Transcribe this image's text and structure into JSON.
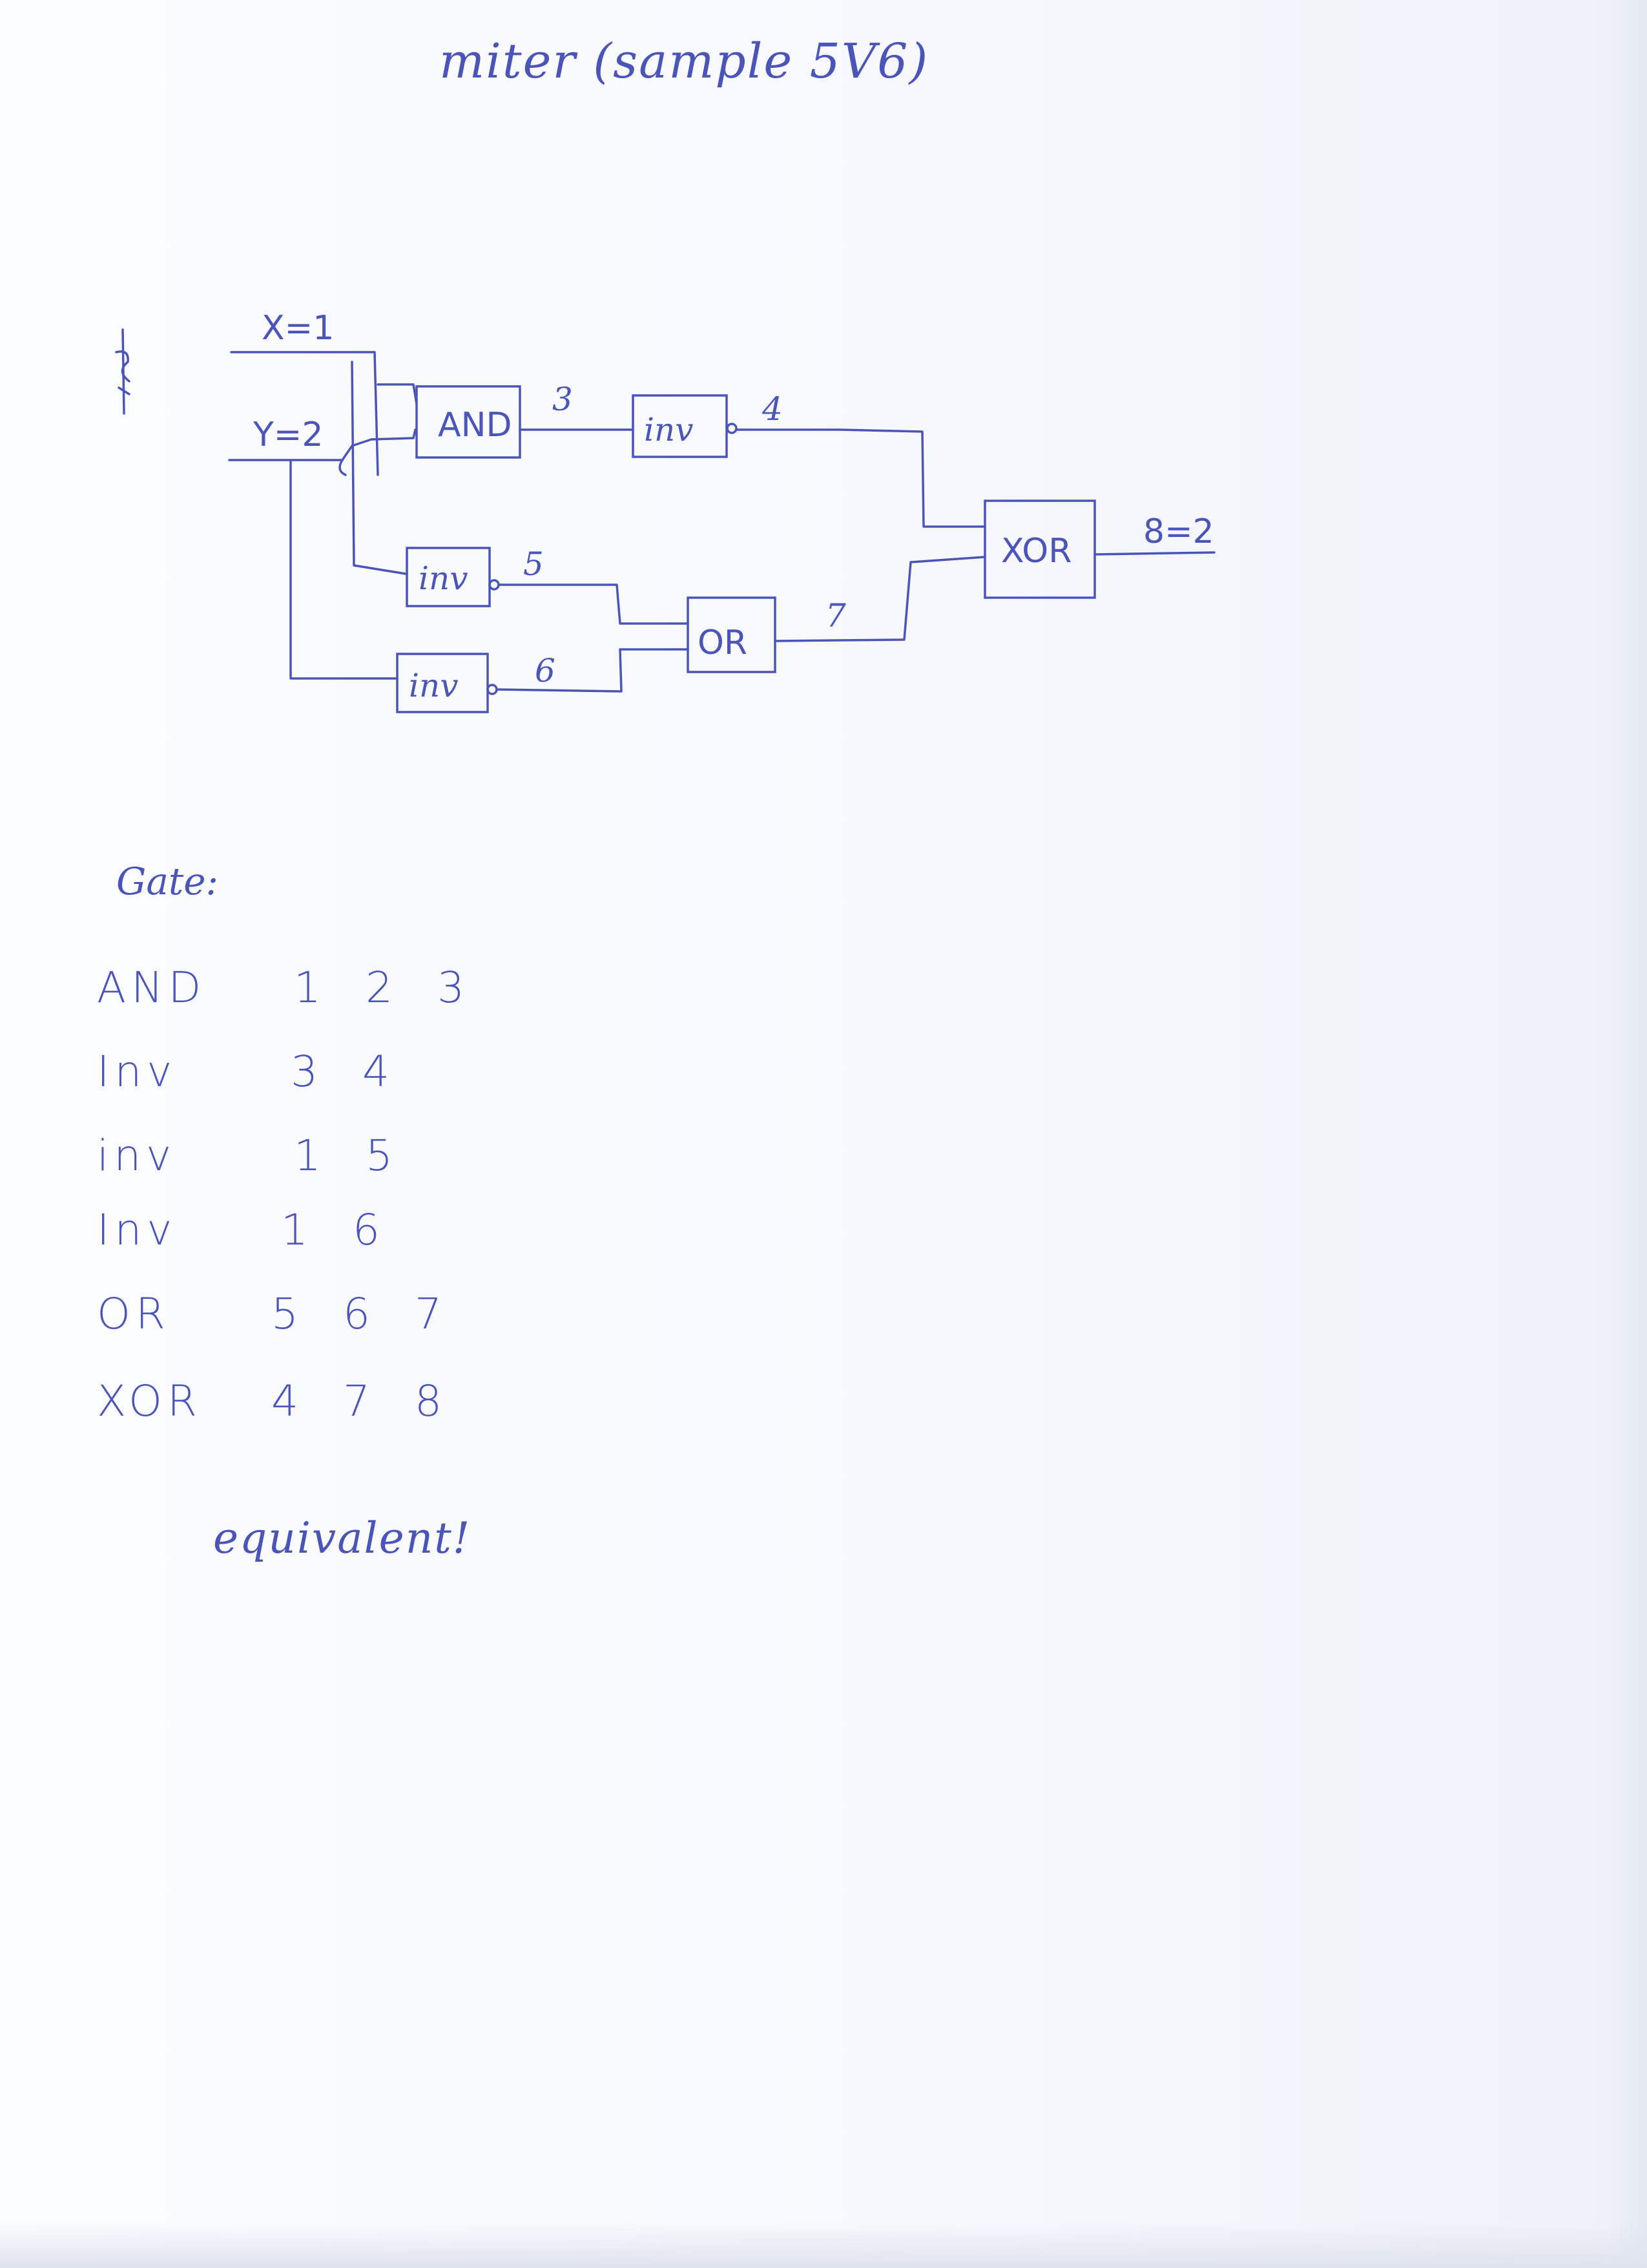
{
  "title": "miter (sample 5V6)",
  "diagram": {
    "inputs": [
      {
        "label": "X=1"
      },
      {
        "label": "Y=2"
      }
    ],
    "gates": [
      {
        "id": "and",
        "label": "AND"
      },
      {
        "id": "inv4",
        "label": "inv"
      },
      {
        "id": "inv5",
        "label": "inv"
      },
      {
        "id": "inv6",
        "label": "inv"
      },
      {
        "id": "or",
        "label": "OR"
      },
      {
        "id": "xor",
        "label": "XOR"
      }
    ],
    "wires": {
      "n3": "3",
      "n4": "4",
      "n5": "5",
      "n6": "6",
      "n7": "7",
      "n8": "8=2"
    }
  },
  "gate_list": {
    "heading": "Gate:",
    "rows": [
      {
        "name": "AND",
        "nodes": "1 2 3"
      },
      {
        "name": "Inv",
        "nodes": "3 4"
      },
      {
        "name": "inv",
        "nodes": "1 5"
      },
      {
        "name": "Inv",
        "nodes": "1 6"
      },
      {
        "name": "OR",
        "nodes": "5 6 7"
      },
      {
        "name": "XOR",
        "nodes": "4 7 8"
      }
    ]
  },
  "note": "equivalent!",
  "ink_color": "#4b55b8"
}
